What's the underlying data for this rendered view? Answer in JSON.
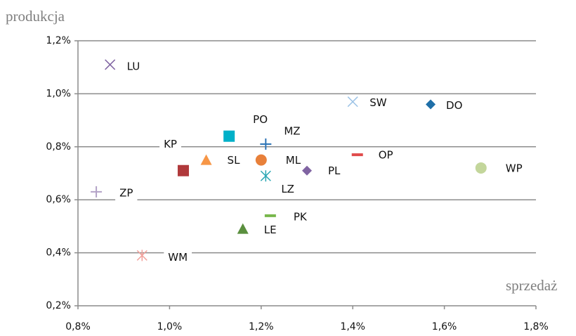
{
  "chart_data": {
    "type": "scatter",
    "ylabel": "produkcja",
    "xlabel": "sprzedaż",
    "xlim": [
      0.8,
      1.8
    ],
    "ylim": [
      0.2,
      1.2
    ],
    "xticks": [
      {
        "value": 0.8,
        "label": "0,8%"
      },
      {
        "value": 1.0,
        "label": "1,0%"
      },
      {
        "value": 1.2,
        "label": "1,2%"
      },
      {
        "value": 1.4,
        "label": "1,4%"
      },
      {
        "value": 1.6,
        "label": "1,6%"
      },
      {
        "value": 1.8,
        "label": "1,8%"
      }
    ],
    "yticks": [
      {
        "value": 0.2,
        "label": "0,2%"
      },
      {
        "value": 0.4,
        "label": "0,4%"
      },
      {
        "value": 0.6,
        "label": "0,6%"
      },
      {
        "value": 0.8,
        "label": "0,8%"
      },
      {
        "value": 1.0,
        "label": "1,0%"
      },
      {
        "value": 1.2,
        "label": "1,2%"
      }
    ],
    "grid": true,
    "series": [
      {
        "name": "LU",
        "color": "#8064a2",
        "marker": "x",
        "x": [
          0.87
        ],
        "values": [
          1.11
        ]
      },
      {
        "name": "SW",
        "color": "#9dc3e6",
        "marker": "x",
        "x": [
          1.4
        ],
        "values": [
          0.97
        ]
      },
      {
        "name": "DO",
        "color": "#1f6fa8",
        "marker": "diamond",
        "x": [
          1.57
        ],
        "values": [
          0.96
        ]
      },
      {
        "name": "PO",
        "color": "#00b0c8",
        "marker": "square",
        "x": [
          1.13
        ],
        "values": [
          0.84
        ]
      },
      {
        "name": "MZ",
        "color": "#2e75b6",
        "marker": "plus",
        "x": [
          1.21
        ],
        "values": [
          0.81
        ]
      },
      {
        "name": "KP",
        "color": "#b0393b",
        "marker": "square",
        "x": [
          1.03
        ],
        "values": [
          0.71
        ]
      },
      {
        "name": "SL",
        "color": "#f79646",
        "marker": "triangle",
        "x": [
          1.08
        ],
        "values": [
          0.75
        ]
      },
      {
        "name": "ML",
        "color": "#e8803a",
        "marker": "circle",
        "x": [
          1.2
        ],
        "values": [
          0.75
        ]
      },
      {
        "name": "OP",
        "color": "#e04a4a",
        "marker": "dash",
        "x": [
          1.41
        ],
        "values": [
          0.77
        ]
      },
      {
        "name": "PL",
        "color": "#8064a2",
        "marker": "diamond",
        "x": [
          1.3
        ],
        "values": [
          0.71
        ]
      },
      {
        "name": "LZ",
        "color": "#2aa6b3",
        "marker": "star",
        "x": [
          1.21
        ],
        "values": [
          0.69
        ]
      },
      {
        "name": "WP",
        "color": "#c3d69b",
        "marker": "circle",
        "x": [
          1.68
        ],
        "values": [
          0.72
        ]
      },
      {
        "name": "ZP",
        "color": "#b3a2c7",
        "marker": "plus",
        "x": [
          0.84
        ],
        "values": [
          0.63
        ]
      },
      {
        "name": "PK",
        "color": "#77b74b",
        "marker": "dash",
        "x": [
          1.22
        ],
        "values": [
          0.54
        ]
      },
      {
        "name": "LE",
        "color": "#5a8f3e",
        "marker": "triangle",
        "x": [
          1.16
        ],
        "values": [
          0.49
        ]
      },
      {
        "name": "WM",
        "color": "#f2a09a",
        "marker": "star",
        "x": [
          0.94
        ],
        "values": [
          0.39
        ]
      }
    ]
  }
}
